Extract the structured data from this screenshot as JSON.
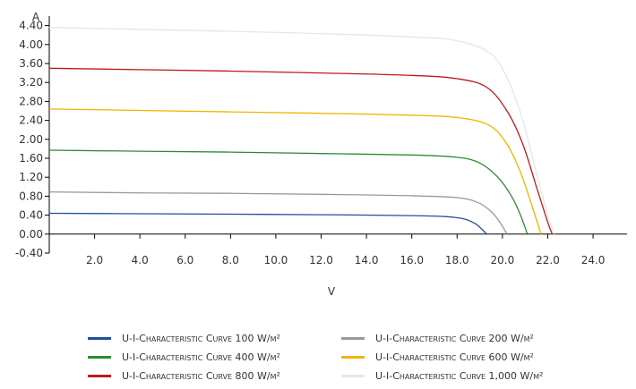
{
  "chart_data": {
    "type": "line",
    "title": "",
    "xlabel": "V",
    "ylabel": "A",
    "xlim": [
      0,
      25.5
    ],
    "ylim": [
      -0.4,
      4.6
    ],
    "x_ticks": [
      2,
      4,
      6,
      8,
      10,
      12,
      14,
      16,
      18,
      20,
      22,
      24
    ],
    "x_tick_labels": [
      "2.0",
      "4.0",
      "6.0",
      "8.0",
      "10.0",
      "12.0",
      "14.0",
      "16.0",
      "18.0",
      "20.0",
      "22.0",
      "24.0"
    ],
    "y_ticks": [
      -0.4,
      0,
      0.4,
      0.8,
      1.2,
      1.6,
      2.0,
      2.4,
      2.8,
      3.2,
      3.6,
      4.0,
      4.4
    ],
    "y_tick_labels": [
      "-0.40",
      "0.00",
      "0.40",
      "0.80",
      "1.20",
      "1.60",
      "2.00",
      "2.40",
      "2.80",
      "3.20",
      "3.60",
      "4.00",
      "4.40"
    ],
    "grid": false,
    "legend_position": "bottom",
    "series": [
      {
        "name": "U-I-Characteristic Curve 100 W/m²",
        "color": "#1f4e9c",
        "x": [
          0,
          4,
          8,
          12,
          16,
          17.5,
          18.3,
          18.8,
          19.1,
          19.3
        ],
        "y": [
          0.44,
          0.43,
          0.42,
          0.41,
          0.39,
          0.37,
          0.32,
          0.22,
          0.1,
          0.0
        ]
      },
      {
        "name": "U-I-Characteristic Curve 200 W/m²",
        "color": "#999999",
        "x": [
          0,
          4,
          8,
          12,
          16,
          18,
          18.9,
          19.5,
          19.9,
          20.2
        ],
        "y": [
          0.89,
          0.87,
          0.86,
          0.84,
          0.81,
          0.77,
          0.67,
          0.48,
          0.24,
          0.0
        ]
      },
      {
        "name": "U-I-Characteristic Curve 400 W/m²",
        "color": "#2e8b2e",
        "x": [
          0,
          4,
          8,
          12,
          16,
          18,
          19,
          19.8,
          20.4,
          20.8,
          21.1
        ],
        "y": [
          1.77,
          1.75,
          1.73,
          1.7,
          1.67,
          1.62,
          1.5,
          1.2,
          0.8,
          0.4,
          0.0
        ]
      },
      {
        "name": "U-I-Characteristic Curve 600 W/m²",
        "color": "#f0b400",
        "x": [
          0,
          4,
          8,
          12,
          16,
          18,
          19.4,
          20.2,
          20.8,
          21.3,
          21.7
        ],
        "y": [
          2.64,
          2.61,
          2.58,
          2.55,
          2.51,
          2.46,
          2.3,
          1.9,
          1.3,
          0.6,
          0.0
        ]
      },
      {
        "name": "U-I-Characteristic Curve 800 W/m²",
        "color": "#c01818",
        "x": [
          0,
          4,
          8,
          12,
          16,
          18,
          19.3,
          20.2,
          20.9,
          21.5,
          22.0,
          22.2
        ],
        "y": [
          3.5,
          3.47,
          3.44,
          3.4,
          3.35,
          3.28,
          3.1,
          2.6,
          1.9,
          1.0,
          0.25,
          0.0
        ]
      },
      {
        "name": "U-I-Characteristic Curve 1,000 W/m²",
        "color": "#e2e6ee",
        "x": [
          0,
          4,
          8,
          12,
          16,
          18,
          19.5,
          20.3,
          20.9,
          21.5,
          22.0,
          22.3
        ],
        "y": [
          4.36,
          4.32,
          4.28,
          4.23,
          4.16,
          4.08,
          3.8,
          3.2,
          2.4,
          1.3,
          0.4,
          0.0
        ]
      }
    ]
  }
}
